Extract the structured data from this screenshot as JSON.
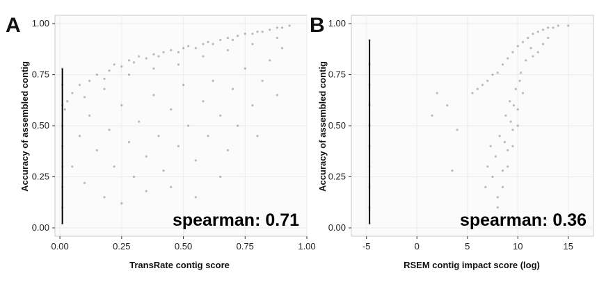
{
  "chart_data": [
    {
      "panel": "A",
      "type": "scatter",
      "xlabel": "TransRate contig score",
      "ylabel": "Accuracy of assembled contig",
      "xlim": [
        -0.02,
        1.0
      ],
      "ylim": [
        0.0,
        1.0
      ],
      "xticks": [
        "0.00",
        "0.25",
        "0.50",
        "0.75",
        "1.00"
      ],
      "yticks": [
        "0.00",
        "0.25",
        "0.50",
        "0.75",
        "1.00"
      ],
      "annotation": "spearman:  0.71",
      "grid": true,
      "legend": "none",
      "points": [
        [
          0.01,
          0.02
        ],
        [
          0.01,
          0.1
        ],
        [
          0.01,
          0.2
        ],
        [
          0.01,
          0.3
        ],
        [
          0.01,
          0.4
        ],
        [
          0.01,
          0.5
        ],
        [
          0.01,
          0.6
        ],
        [
          0.01,
          0.7
        ],
        [
          0.01,
          0.78
        ],
        [
          0.02,
          0.58
        ],
        [
          0.03,
          0.62
        ],
        [
          0.05,
          0.66
        ],
        [
          0.08,
          0.7
        ],
        [
          0.1,
          0.64
        ],
        [
          0.12,
          0.72
        ],
        [
          0.15,
          0.75
        ],
        [
          0.18,
          0.73
        ],
        [
          0.2,
          0.77
        ],
        [
          0.22,
          0.8
        ],
        [
          0.25,
          0.79
        ],
        [
          0.28,
          0.82
        ],
        [
          0.3,
          0.81
        ],
        [
          0.32,
          0.84
        ],
        [
          0.35,
          0.83
        ],
        [
          0.38,
          0.85
        ],
        [
          0.4,
          0.84
        ],
        [
          0.42,
          0.86
        ],
        [
          0.45,
          0.87
        ],
        [
          0.48,
          0.86
        ],
        [
          0.5,
          0.88
        ],
        [
          0.52,
          0.89
        ],
        [
          0.55,
          0.88
        ],
        [
          0.58,
          0.9
        ],
        [
          0.6,
          0.91
        ],
        [
          0.62,
          0.9
        ],
        [
          0.65,
          0.92
        ],
        [
          0.68,
          0.93
        ],
        [
          0.7,
          0.92
        ],
        [
          0.72,
          0.94
        ],
        [
          0.75,
          0.95
        ],
        [
          0.78,
          0.95
        ],
        [
          0.8,
          0.96
        ],
        [
          0.82,
          0.96
        ],
        [
          0.85,
          0.97
        ],
        [
          0.88,
          0.98
        ],
        [
          0.9,
          0.98
        ],
        [
          0.93,
          0.99
        ],
        [
          0.05,
          0.3
        ],
        [
          0.08,
          0.45
        ],
        [
          0.1,
          0.22
        ],
        [
          0.12,
          0.55
        ],
        [
          0.15,
          0.38
        ],
        [
          0.18,
          0.15
        ],
        [
          0.2,
          0.48
        ],
        [
          0.22,
          0.3
        ],
        [
          0.25,
          0.6
        ],
        [
          0.28,
          0.42
        ],
        [
          0.3,
          0.25
        ],
        [
          0.32,
          0.52
        ],
        [
          0.35,
          0.35
        ],
        [
          0.38,
          0.65
        ],
        [
          0.4,
          0.45
        ],
        [
          0.42,
          0.28
        ],
        [
          0.45,
          0.58
        ],
        [
          0.48,
          0.4
        ],
        [
          0.5,
          0.7
        ],
        [
          0.52,
          0.5
        ],
        [
          0.55,
          0.33
        ],
        [
          0.58,
          0.62
        ],
        [
          0.6,
          0.45
        ],
        [
          0.62,
          0.72
        ],
        [
          0.65,
          0.55
        ],
        [
          0.68,
          0.38
        ],
        [
          0.7,
          0.68
        ],
        [
          0.72,
          0.5
        ],
        [
          0.75,
          0.78
        ],
        [
          0.78,
          0.6
        ],
        [
          0.8,
          0.45
        ],
        [
          0.82,
          0.72
        ],
        [
          0.85,
          0.82
        ],
        [
          0.88,
          0.65
        ],
        [
          0.9,
          0.88
        ],
        [
          0.25,
          0.12
        ],
        [
          0.35,
          0.18
        ],
        [
          0.45,
          0.2
        ],
        [
          0.55,
          0.15
        ],
        [
          0.65,
          0.25
        ],
        [
          0.18,
          0.68
        ],
        [
          0.28,
          0.75
        ],
        [
          0.38,
          0.78
        ],
        [
          0.48,
          0.8
        ],
        [
          0.58,
          0.84
        ],
        [
          0.68,
          0.87
        ],
        [
          0.78,
          0.9
        ],
        [
          0.88,
          0.93
        ]
      ]
    },
    {
      "panel": "B",
      "type": "scatter",
      "xlabel": "RSEM contig impact score (log)",
      "ylabel": "Accuracy of assembled contig",
      "xlim": [
        -6.5,
        17.5
      ],
      "ylim": [
        0.0,
        1.0
      ],
      "xticks": [
        "-5",
        "0",
        "5",
        "10",
        "15"
      ],
      "yticks": [
        "0.00",
        "0.25",
        "0.50",
        "0.75",
        "1.00"
      ],
      "annotation": "spearman:  0.36",
      "grid": true,
      "legend": "none",
      "points": [
        [
          -4.7,
          0.02
        ],
        [
          -4.7,
          0.1
        ],
        [
          -4.7,
          0.2
        ],
        [
          -4.7,
          0.3
        ],
        [
          -4.7,
          0.4
        ],
        [
          -4.7,
          0.5
        ],
        [
          -4.7,
          0.6
        ],
        [
          -4.7,
          0.7
        ],
        [
          -4.7,
          0.8
        ],
        [
          -4.7,
          0.92
        ],
        [
          5.5,
          0.66
        ],
        [
          6.0,
          0.68
        ],
        [
          6.5,
          0.7
        ],
        [
          7.0,
          0.72
        ],
        [
          7.5,
          0.75
        ],
        [
          8.0,
          0.76
        ],
        [
          8.5,
          0.8
        ],
        [
          9.0,
          0.83
        ],
        [
          9.5,
          0.86
        ],
        [
          10.0,
          0.89
        ],
        [
          10.5,
          0.91
        ],
        [
          11.0,
          0.93
        ],
        [
          11.5,
          0.95
        ],
        [
          12.0,
          0.96
        ],
        [
          12.5,
          0.97
        ],
        [
          13.0,
          0.98
        ],
        [
          13.5,
          0.98
        ],
        [
          14.0,
          0.99
        ],
        [
          15.0,
          0.99
        ],
        [
          7.5,
          0.25
        ],
        [
          7.8,
          0.35
        ],
        [
          8.0,
          0.15
        ],
        [
          8.2,
          0.45
        ],
        [
          8.5,
          0.28
        ],
        [
          8.8,
          0.55
        ],
        [
          9.0,
          0.38
        ],
        [
          9.2,
          0.62
        ],
        [
          9.5,
          0.48
        ],
        [
          9.8,
          0.68
        ],
        [
          10.0,
          0.58
        ],
        [
          10.2,
          0.72
        ],
        [
          10.5,
          0.66
        ],
        [
          8.0,
          0.1
        ],
        [
          8.5,
          0.2
        ],
        [
          9.0,
          0.3
        ],
        [
          9.5,
          0.4
        ],
        [
          10.0,
          0.5
        ],
        [
          7.0,
          0.3
        ],
        [
          7.3,
          0.4
        ],
        [
          6.8,
          0.2
        ],
        [
          9.3,
          0.52
        ],
        [
          8.7,
          0.42
        ],
        [
          9.6,
          0.6
        ],
        [
          10.3,
          0.76
        ],
        [
          10.8,
          0.82
        ],
        [
          11.3,
          0.88
        ],
        [
          2.0,
          0.66
        ],
        [
          3.0,
          0.6
        ],
        [
          4.0,
          0.48
        ],
        [
          1.5,
          0.55
        ],
        [
          3.5,
          0.28
        ],
        [
          12.0,
          0.86
        ],
        [
          12.5,
          0.9
        ],
        [
          13.0,
          0.93
        ],
        [
          11.5,
          0.84
        ]
      ]
    }
  ],
  "panels": [
    {
      "letter": "A",
      "annotation": "spearman:  0.71"
    },
    {
      "letter": "B",
      "annotation": "spearman:  0.36"
    }
  ],
  "colors": {
    "points": "#111111",
    "plot_background": "#fbfbfb",
    "grid": "#ebebeb"
  }
}
